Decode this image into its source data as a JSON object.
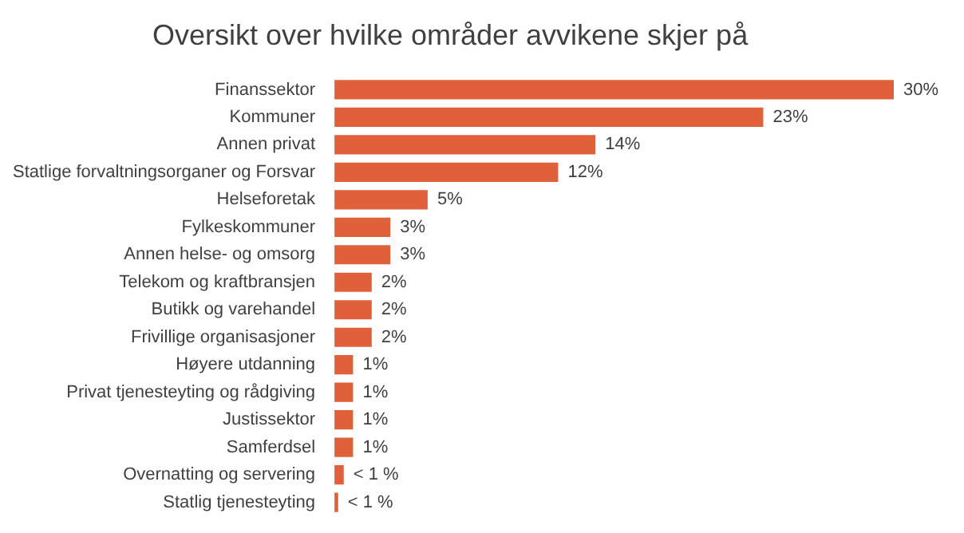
{
  "chart_data": {
    "type": "bar",
    "orientation": "horizontal",
    "title": "Oversikt over hvilke områder avvikene skjer på",
    "categories": [
      "Finanssektor",
      "Kommuner",
      "Annen privat",
      "Statlige forvaltningsorganer og Forsvar",
      "Helseforetak",
      "Fylkeskommuner",
      "Annen helse- og omsorg",
      "Telekom og kraftbransjen",
      "Butikk og varehandel",
      "Frivillige organisasjoner",
      "Høyere utdanning",
      "Privat tjenesteyting og rådgiving",
      "Justissektor",
      "Samferdsel",
      "Overnatting og servering",
      "Statlig tjenesteyting"
    ],
    "values": [
      30,
      23,
      14,
      12,
      5,
      3,
      3,
      2,
      2,
      2,
      1,
      1,
      1,
      1,
      0.5,
      0.2
    ],
    "value_labels": [
      "30%",
      "23%",
      "14%",
      "12%",
      "5%",
      "3%",
      "3%",
      "2%",
      "2%",
      "2%",
      "1%",
      "1%",
      "1%",
      "1%",
      "< 1 %",
      "< 1 %"
    ],
    "color": "#e0603a",
    "legend": false,
    "tick_labels": "y"
  }
}
